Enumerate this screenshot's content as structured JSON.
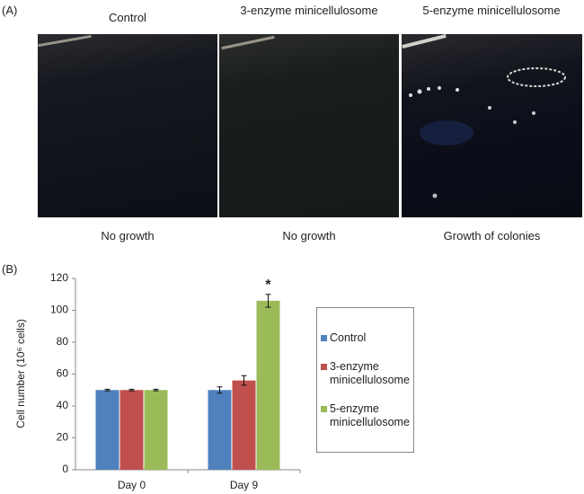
{
  "panel_a": {
    "label": "(A)",
    "photos": [
      {
        "title": "Control",
        "caption": "No growth"
      },
      {
        "title": "3-enzyme minicellulosome",
        "caption": "No growth"
      },
      {
        "title": "5-enzyme minicellulosome",
        "caption": "Growth of colonies"
      }
    ]
  },
  "panel_b": {
    "label": "(B)"
  },
  "chart_data": {
    "type": "bar",
    "y_label": "Cell number (10⁶ cells)",
    "categories": [
      "Day 0",
      "Day 9"
    ],
    "series": [
      {
        "name": "Control",
        "color": "#4f81bd",
        "values": [
          50,
          50
        ],
        "errors": [
          0.5,
          2
        ]
      },
      {
        "name": "3-enzyme minicellulosome",
        "color": "#c0504d",
        "values": [
          50,
          56
        ],
        "errors": [
          0.5,
          3
        ]
      },
      {
        "name": "5-enzyme minicellulosome",
        "color": "#9bbb59",
        "values": [
          50,
          106
        ],
        "errors": [
          0.5,
          4
        ],
        "annotations": [
          null,
          "*"
        ]
      }
    ],
    "ylim": [
      0,
      120
    ],
    "yticks": [
      0,
      20,
      40,
      60,
      80,
      100,
      120
    ],
    "legend": "right"
  }
}
